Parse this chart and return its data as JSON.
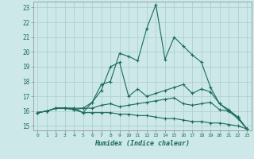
{
  "xlabel": "Humidex (Indice chaleur)",
  "background_color": "#cce8e8",
  "grid_color": "#aacccc",
  "line_color": "#1a6b5a",
  "xlim": [
    -0.5,
    23.5
  ],
  "ylim": [
    14.7,
    23.4
  ],
  "yticks": [
    15,
    16,
    17,
    18,
    19,
    20,
    21,
    22,
    23
  ],
  "xticks": [
    0,
    1,
    2,
    3,
    4,
    5,
    6,
    7,
    8,
    9,
    10,
    11,
    12,
    13,
    14,
    15,
    16,
    17,
    18,
    19,
    20,
    21,
    22,
    23
  ],
  "series": [
    [
      15.9,
      16.0,
      16.2,
      16.2,
      16.2,
      15.9,
      16.6,
      17.8,
      18.0,
      19.9,
      19.7,
      19.4,
      21.6,
      23.2,
      19.5,
      21.0,
      20.4,
      19.8,
      19.3,
      17.6,
      16.5,
      16.1,
      15.6,
      14.8
    ],
    [
      15.9,
      16.0,
      16.2,
      16.2,
      16.2,
      16.2,
      16.6,
      17.4,
      19.0,
      19.3,
      17.0,
      17.5,
      17.0,
      17.2,
      17.4,
      17.6,
      17.8,
      17.2,
      17.5,
      17.3,
      16.5,
      16.0,
      15.5,
      14.8
    ],
    [
      15.9,
      16.0,
      16.2,
      16.2,
      16.1,
      16.2,
      16.2,
      16.4,
      16.5,
      16.3,
      16.4,
      16.5,
      16.6,
      16.7,
      16.8,
      16.9,
      16.5,
      16.4,
      16.5,
      16.6,
      16.1,
      16.0,
      15.6,
      14.8
    ],
    [
      15.9,
      16.0,
      16.2,
      16.2,
      16.1,
      15.9,
      15.9,
      15.9,
      15.9,
      15.8,
      15.8,
      15.7,
      15.7,
      15.6,
      15.5,
      15.5,
      15.4,
      15.3,
      15.3,
      15.2,
      15.2,
      15.1,
      15.0,
      14.8
    ]
  ]
}
